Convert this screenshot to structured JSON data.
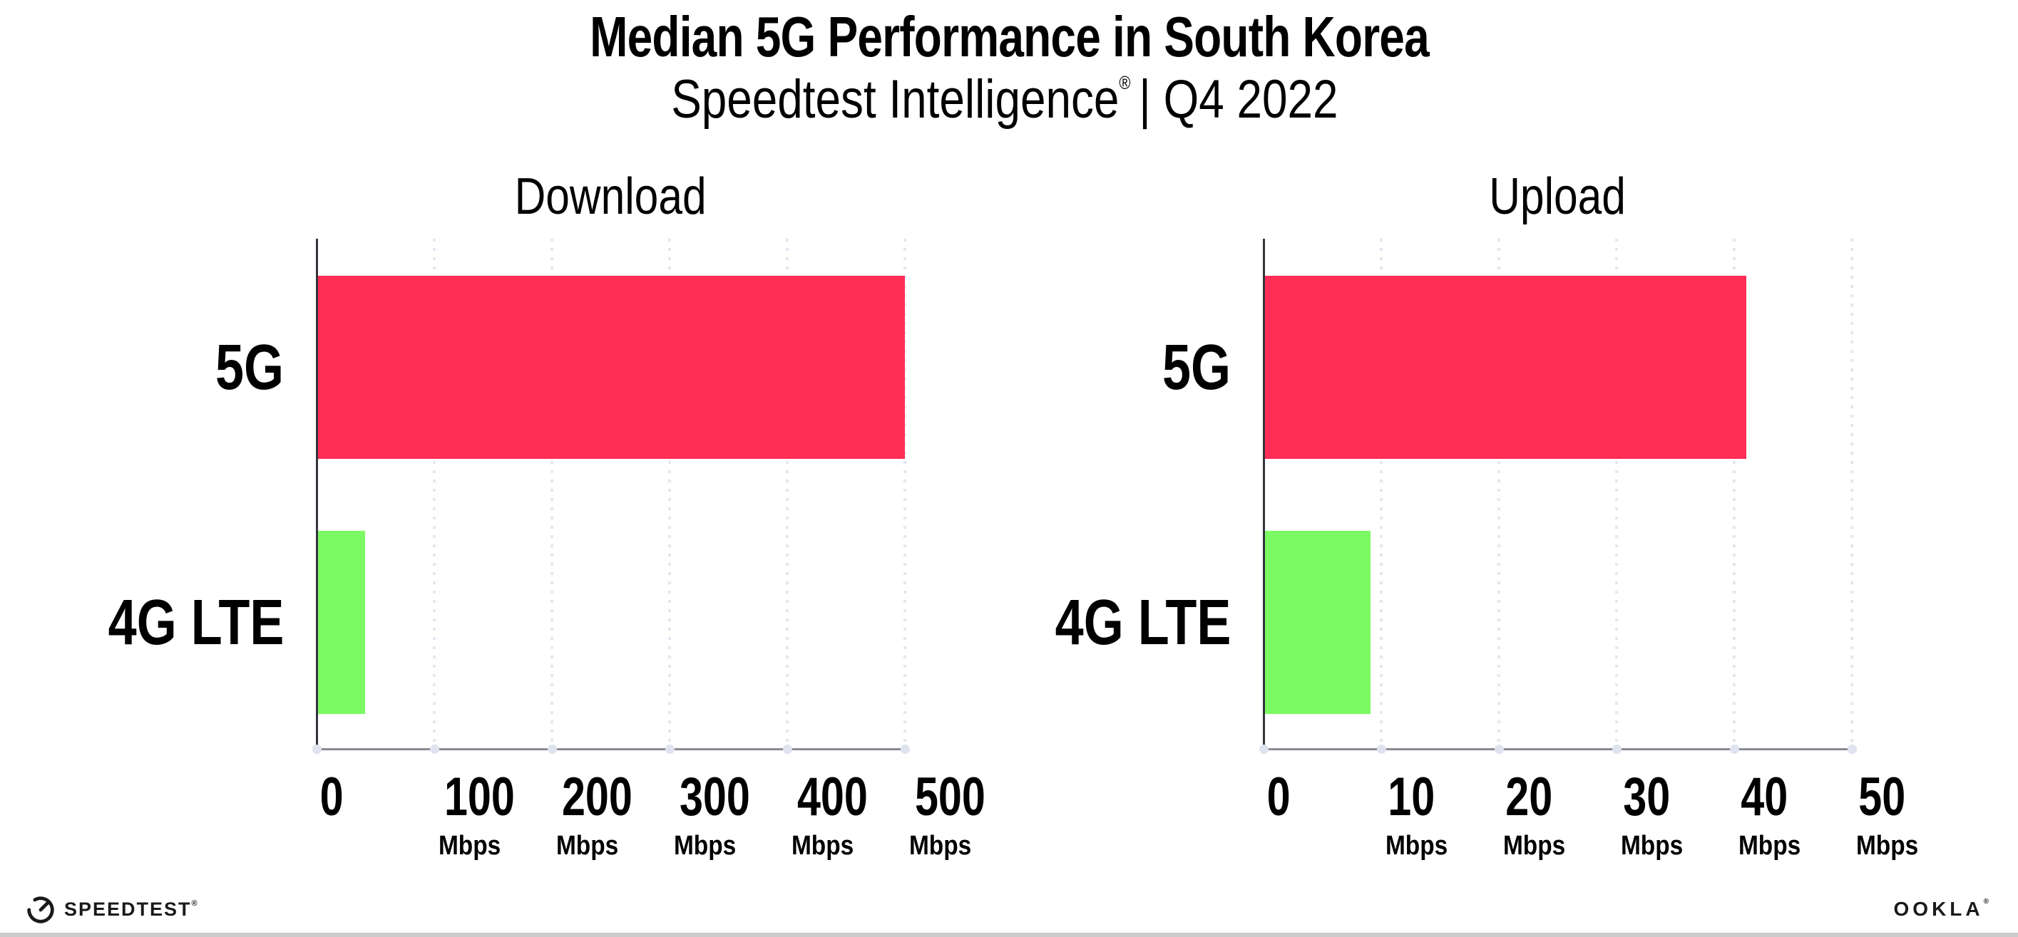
{
  "header": {
    "title": "Median 5G Performance in South Korea",
    "subtitle": {
      "brand": "Speedtest Intelligence",
      "reg": "®",
      "rest": "| Q4 2022"
    }
  },
  "chart_data": [
    {
      "type": "bar",
      "orientation": "horizontal",
      "title": "Download",
      "categories": [
        "5G",
        "4G LTE"
      ],
      "values": [
        500,
        40
      ],
      "unit": "Mbps",
      "xlim": [
        0,
        500
      ],
      "ticks": [
        0,
        100,
        200,
        300,
        400,
        500
      ],
      "bar_colors": [
        "#FF2E56",
        "#7CFA63"
      ],
      "grid": "dotted-vertical",
      "legend": "none"
    },
    {
      "type": "bar",
      "orientation": "horizontal",
      "title": "Upload",
      "categories": [
        "5G",
        "4G LTE"
      ],
      "values": [
        41,
        9
      ],
      "unit": "Mbps",
      "xlim": [
        0,
        50
      ],
      "ticks": [
        0,
        10,
        20,
        30,
        40,
        50
      ],
      "bar_colors": [
        "#FF2E56",
        "#7CFA63"
      ],
      "grid": "dotted-vertical",
      "legend": "none"
    }
  ],
  "colors": {
    "bar_5g": "#FF2E56",
    "bar_4g_lte": "#7CFA63",
    "gridline": "#e4e6f1",
    "x_axis": "#8a8a93",
    "y_axis": "#34343c",
    "text": "#000000"
  },
  "footer": {
    "speedtest": "SPEEDTEST",
    "speedtest_reg": "®",
    "ookla": "OOKLA",
    "ookla_reg": "®"
  }
}
